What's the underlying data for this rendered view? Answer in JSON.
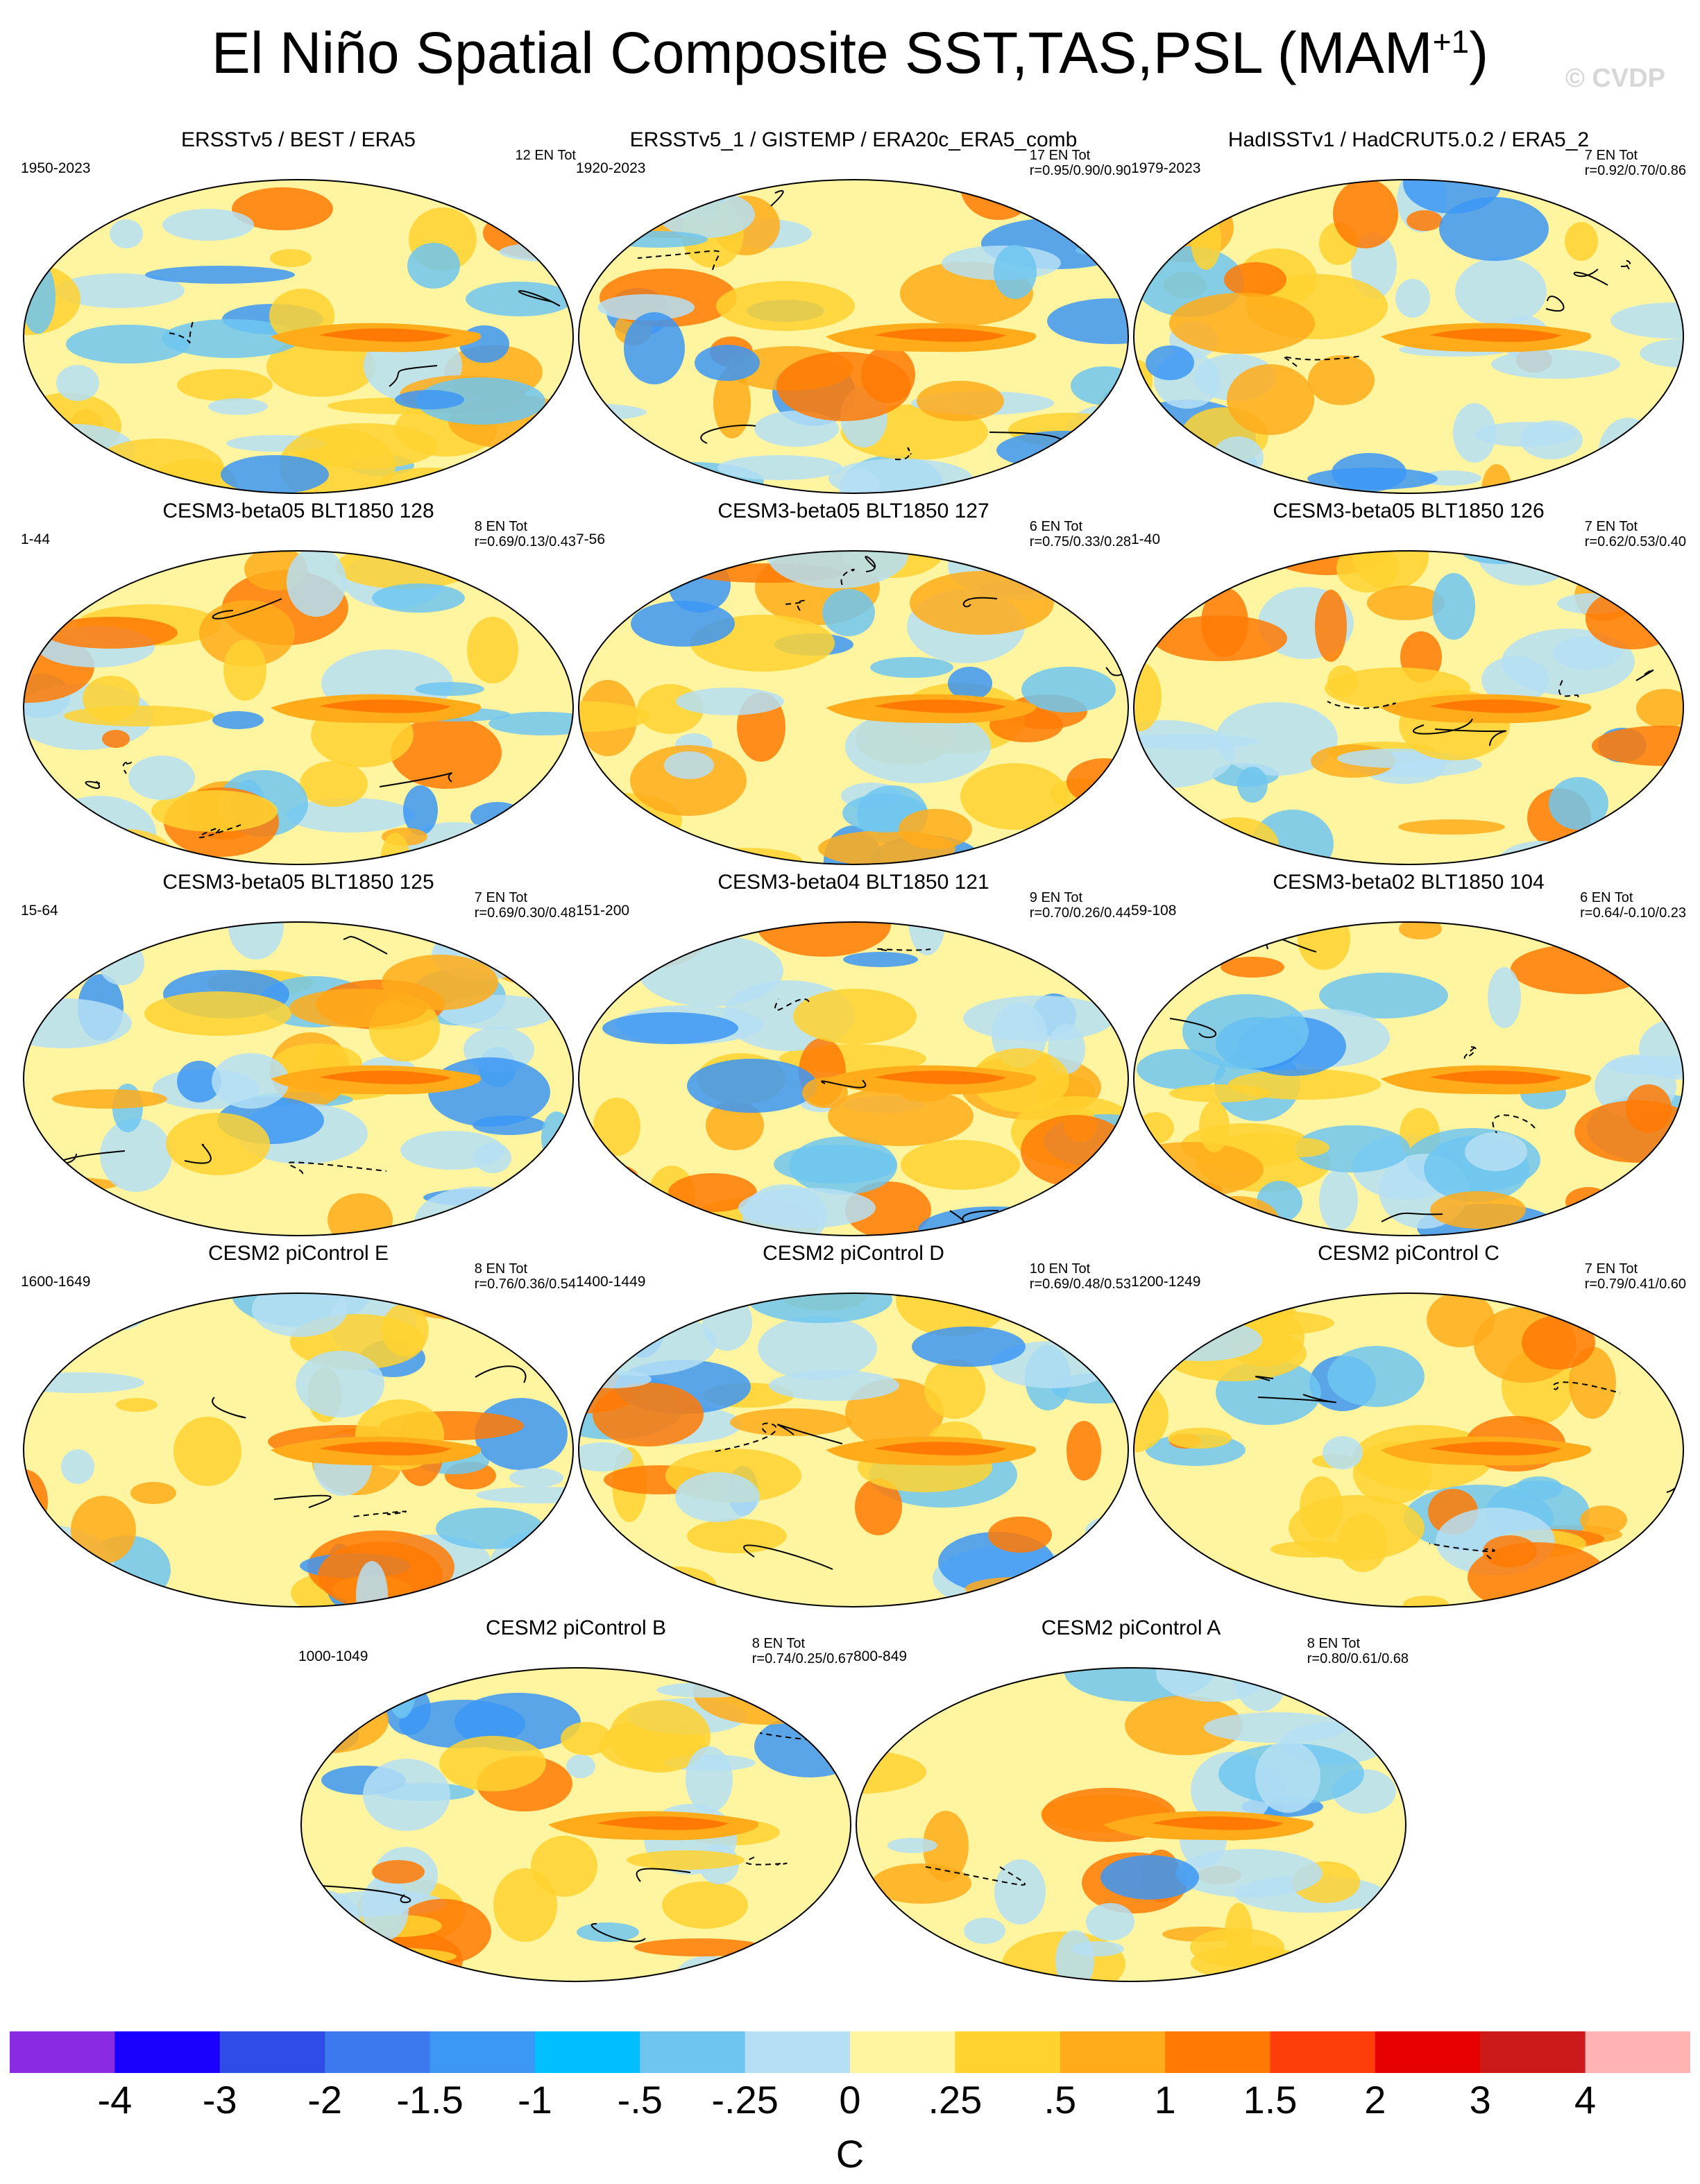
{
  "figure": {
    "title": "El Niño Spatial Composite SST,TAS,PSL (MAM",
    "title_sup": "+1",
    "title_close": ")",
    "watermark": "© CVDP"
  },
  "panels": [
    {
      "title": "ERSSTv5 / BEST / ERA5",
      "years": "1950-2023",
      "count": "12 EN Tot",
      "corr": ""
    },
    {
      "title": "ERSSTv5_1 / GISTEMP / ERA20c_ERA5_comb",
      "years": "1920-2023",
      "count": "17 EN Tot",
      "corr": "r=0.95/0.90/0.90"
    },
    {
      "title": "HadISSTv1 / HadCRUT5.0.2 / ERA5_2",
      "years": "1979-2023",
      "count": "7 EN Tot",
      "corr": "r=0.92/0.70/0.86"
    },
    {
      "title": "CESM3-beta05 BLT1850 128",
      "years": "1-44",
      "count": "8 EN Tot",
      "corr": "r=0.69/0.13/0.43"
    },
    {
      "title": "CESM3-beta05 BLT1850 127",
      "years": "7-56",
      "count": "6 EN Tot",
      "corr": "r=0.75/0.33/0.28"
    },
    {
      "title": "CESM3-beta05 BLT1850 126",
      "years": "1-40",
      "count": "7 EN Tot",
      "corr": "r=0.62/0.53/0.40"
    },
    {
      "title": "CESM3-beta05 BLT1850 125",
      "years": "15-64",
      "count": "7 EN Tot",
      "corr": "r=0.69/0.30/0.48"
    },
    {
      "title": "CESM3-beta04 BLT1850 121",
      "years": "151-200",
      "count": "9 EN Tot",
      "corr": "r=0.70/0.26/0.44"
    },
    {
      "title": "CESM3-beta02 BLT1850 104",
      "years": "59-108",
      "count": "6 EN Tot",
      "corr": "r=0.64/-0.10/0.23"
    },
    {
      "title": "CESM2 piControl E",
      "years": "1600-1649",
      "count": "8 EN Tot",
      "corr": "r=0.76/0.36/0.54"
    },
    {
      "title": "CESM2 piControl D",
      "years": "1400-1449",
      "count": "10 EN Tot",
      "corr": "r=0.69/0.48/0.53"
    },
    {
      "title": "CESM2 piControl C",
      "years": "1200-1249",
      "count": "7 EN Tot",
      "corr": "r=0.79/0.41/0.60"
    },
    {
      "title": "CESM2 piControl B",
      "years": "1000-1049",
      "count": "8 EN Tot",
      "corr": "r=0.74/0.25/0.67"
    },
    {
      "title": "CESM2 piControl A",
      "years": "800-849",
      "count": "8 EN Tot",
      "corr": "r=0.80/0.61/0.68"
    }
  ],
  "colorbar": {
    "colors": [
      "#8a2be2",
      "#1a00ff",
      "#2e4ce6",
      "#3c78ee",
      "#3c97f5",
      "#00bfff",
      "#6ec5f0",
      "#b5dff5",
      "#fff5a0",
      "#ffd230",
      "#ffab1a",
      "#ff7a05",
      "#ff3d0a",
      "#e60000",
      "#cc1a1a",
      "#ffb3b3"
    ],
    "labels": [
      "-4",
      "-3",
      "-2",
      "-1.5",
      "-1",
      "-.5",
      "-.25",
      "0",
      ".25",
      ".5",
      "1",
      "1.5",
      "2",
      "3",
      "4"
    ],
    "units": "C"
  }
}
